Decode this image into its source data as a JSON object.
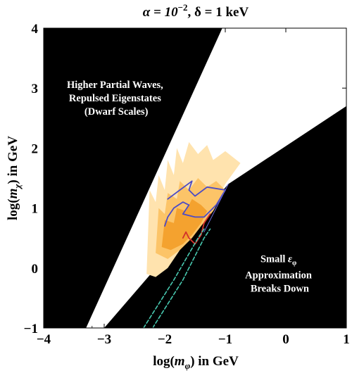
{
  "chart_data": {
    "type": "contour",
    "title": "α = 10⁻², δ = 1 keV",
    "title_parts": {
      "lhs": "α = 10",
      "exp": "−2",
      "rest": ", δ = 1 keV"
    },
    "xlabel": "log(m_φ) in GeV",
    "xlabel_parts": {
      "pre": "log(",
      "var": "m",
      "sub": "φ",
      "post": ") in GeV"
    },
    "ylabel": "log(m_χ) in GeV",
    "ylabel_parts": {
      "pre": "log(",
      "var": "m",
      "sub": "χ",
      "post": ") in GeV"
    },
    "xlim": [
      -4,
      1
    ],
    "ylim": [
      -1,
      4
    ],
    "x_ticks": [
      -4,
      -3,
      -2,
      -1,
      0,
      1
    ],
    "x_tick_labels": [
      "−4",
      "−3",
      "−2",
      "−1",
      "0",
      "1"
    ],
    "y_ticks": [
      -1,
      0,
      1,
      2,
      3,
      4
    ],
    "y_tick_labels": [
      "−1",
      "0",
      "1",
      "2",
      "3",
      "4"
    ],
    "excluded_regions": [
      {
        "name": "upper-left",
        "label_lines": [
          "Higher Partial Waves,",
          "Repulsed Eigenstates",
          "(Dwarf Scales)"
        ],
        "label_at": [
          -2.8,
          3.0
        ],
        "polygon": [
          [
            -4,
            -1
          ],
          [
            -3.3,
            -1
          ],
          [
            -1.05,
            4
          ],
          [
            -4,
            4
          ]
        ]
      },
      {
        "name": "lower-right",
        "label_lines": [
          "Small ε_φ",
          "Approximation",
          "Breaks Down"
        ],
        "label_parts": {
          "epsilon_pre": "Small ",
          "epsilon": "ε",
          "epsilon_sub": "φ"
        },
        "label_at": [
          -0.1,
          0.1
        ],
        "polygon": [
          [
            -3.0,
            -1
          ],
          [
            1,
            -1
          ],
          [
            1,
            2.7
          ],
          [
            -0.95,
            1.4
          ]
        ]
      }
    ],
    "filled_contours": [
      {
        "name": "light",
        "color": "#FFE3AE",
        "polygon": [
          [
            -2.3,
            -0.1
          ],
          [
            -2.25,
            1.3
          ],
          [
            -2.15,
            1.1
          ],
          [
            -2.1,
            1.55
          ],
          [
            -2.0,
            1.3
          ],
          [
            -1.95,
            1.8
          ],
          [
            -1.85,
            1.55
          ],
          [
            -1.8,
            2.0
          ],
          [
            -1.7,
            1.75
          ],
          [
            -1.6,
            2.1
          ],
          [
            -1.45,
            1.9
          ],
          [
            -1.3,
            2.05
          ],
          [
            -1.2,
            1.8
          ],
          [
            -1.0,
            1.95
          ],
          [
            -0.75,
            1.75
          ],
          [
            -1.0,
            1.4
          ],
          [
            -1.25,
            0.95
          ],
          [
            -1.45,
            0.7
          ],
          [
            -1.6,
            0.55
          ],
          [
            -1.75,
            0.3
          ],
          [
            -1.95,
            0.0
          ],
          [
            -2.15,
            -0.15
          ]
        ]
      },
      {
        "name": "medium",
        "color": "#FCC468",
        "polygon": [
          [
            -2.15,
            0.25
          ],
          [
            -2.1,
            1.0
          ],
          [
            -2.0,
            0.9
          ],
          [
            -1.95,
            1.25
          ],
          [
            -1.8,
            1.15
          ],
          [
            -1.75,
            1.45
          ],
          [
            -1.6,
            1.3
          ],
          [
            -1.45,
            1.5
          ],
          [
            -1.3,
            1.35
          ],
          [
            -1.15,
            1.45
          ],
          [
            -1.0,
            1.3
          ],
          [
            -1.2,
            0.95
          ],
          [
            -1.4,
            0.7
          ],
          [
            -1.55,
            0.5
          ],
          [
            -1.75,
            0.3
          ],
          [
            -1.95,
            0.15
          ]
        ]
      },
      {
        "name": "dark",
        "color": "#F4A22F",
        "polygon": [
          [
            -2.05,
            0.35
          ],
          [
            -2.0,
            0.8
          ],
          [
            -1.85,
            0.75
          ],
          [
            -1.8,
            1.0
          ],
          [
            -1.65,
            0.95
          ],
          [
            -1.55,
            1.15
          ],
          [
            -1.4,
            1.05
          ],
          [
            -1.3,
            0.95
          ],
          [
            -1.4,
            0.75
          ],
          [
            -1.55,
            0.55
          ],
          [
            -1.7,
            0.4
          ],
          [
            -1.9,
            0.3
          ]
        ]
      }
    ],
    "contour_lines": [
      {
        "name": "blue",
        "color": "#4B4BC6",
        "width": 1.8,
        "points": [
          [
            -1.95,
            1.15
          ],
          [
            -1.75,
            1.3
          ],
          [
            -1.55,
            1.45
          ],
          [
            -1.6,
            1.3
          ],
          [
            -1.5,
            1.2
          ],
          [
            -1.3,
            1.35
          ],
          [
            -1.0,
            1.3
          ],
          [
            -1.15,
            1.05
          ],
          [
            -1.35,
            0.85
          ],
          [
            -1.5,
            0.85
          ],
          [
            -1.7,
            0.9
          ],
          [
            -1.6,
            1.05
          ],
          [
            -1.7,
            1.1
          ],
          [
            -1.85,
            1.0
          ],
          [
            -1.95,
            0.85
          ],
          [
            -2.0,
            0.7
          ]
        ]
      },
      {
        "name": "red",
        "color": "#D3312B",
        "width": 1.8,
        "points": [
          [
            -1.7,
            0.5
          ],
          [
            -1.65,
            0.6
          ],
          [
            -1.6,
            0.5
          ],
          [
            -1.5,
            0.4
          ],
          [
            -1.4,
            0.55
          ],
          [
            -1.35,
            0.75
          ],
          [
            -1.25,
            0.9
          ]
        ]
      },
      {
        "name": "thin-boundary",
        "color": "#6A6AD8",
        "width": 1.0,
        "points": [
          [
            -1.35,
            0.6
          ],
          [
            -0.95,
            1.4
          ]
        ]
      },
      {
        "name": "cyan-dashed-1",
        "color": "#48C9B0",
        "width": 1.6,
        "dashed": true,
        "points": [
          [
            -2.35,
            -1.0
          ],
          [
            -1.85,
            -0.2
          ],
          [
            -1.45,
            0.5
          ],
          [
            -1.35,
            0.65
          ]
        ]
      },
      {
        "name": "cyan-dashed-2",
        "color": "#48C9B0",
        "width": 1.6,
        "dashed": true,
        "points": [
          [
            -2.2,
            -1.0
          ],
          [
            -1.7,
            -0.2
          ],
          [
            -1.35,
            0.5
          ],
          [
            -1.25,
            0.65
          ]
        ]
      }
    ],
    "grid": false,
    "legend": "none",
    "colors": {
      "excluded": "#000000",
      "background": "#ffffff",
      "frame": "#000000"
    }
  }
}
